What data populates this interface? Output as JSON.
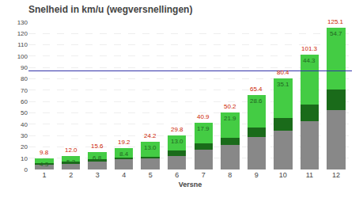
{
  "chart_data": {
    "type": "bar",
    "stacked": true,
    "title": "Snelheid in km/u (wegversnellingen)",
    "xlabel": "Versne",
    "categories": [
      1,
      2,
      3,
      4,
      5,
      6,
      7,
      8,
      9,
      10,
      11,
      12
    ],
    "series": [
      {
        "color": "#888888",
        "values": [
          4.0,
          5.5,
          7.5,
          9.0,
          9.5,
          12.0,
          17.5,
          22.0,
          29.0,
          34.5,
          42.5,
          52.5
        ]
      },
      {
        "color": "#1a6b1a",
        "values": [
          1.5,
          1.2,
          1.3,
          1.8,
          1.7,
          4.8,
          5.5,
          6.3,
          7.8,
          10.8,
          14.5,
          17.9
        ]
      },
      {
        "color": "#44cc44",
        "values": [
          4.3,
          5.3,
          6.8,
          8.4,
          13.0,
          13.0,
          17.9,
          21.9,
          28.6,
          35.1,
          44.3,
          54.7
        ],
        "data_labels": true,
        "value_labels": [
          "4.3",
          "5.3",
          "6.8",
          "8.4",
          "13.0",
          "13.0",
          "17.9",
          "21.9",
          "28.6",
          "35.1",
          "44.3",
          "54.7"
        ],
        "label_color": "#226622"
      }
    ],
    "totals": {
      "values": [
        9.8,
        12.0,
        15.6,
        19.2,
        24.2,
        29.8,
        40.9,
        50.2,
        65.4,
        80.4,
        101.3,
        125.1
      ],
      "value_labels": [
        "9.8",
        "12.0",
        "15.6",
        "19.2",
        "24.2",
        "29.8",
        "40.9",
        "50.2",
        "65.4",
        "80.4",
        "101.3",
        "125.1"
      ],
      "color": "#cc2200"
    },
    "hline": {
      "y": 87.0,
      "color": "#3333aa"
    },
    "ylim": [
      0,
      130
    ],
    "yticks": [
      0,
      10,
      20,
      30,
      40,
      50,
      60,
      70,
      80,
      90,
      100,
      110,
      120,
      130
    ],
    "grid": true
  }
}
